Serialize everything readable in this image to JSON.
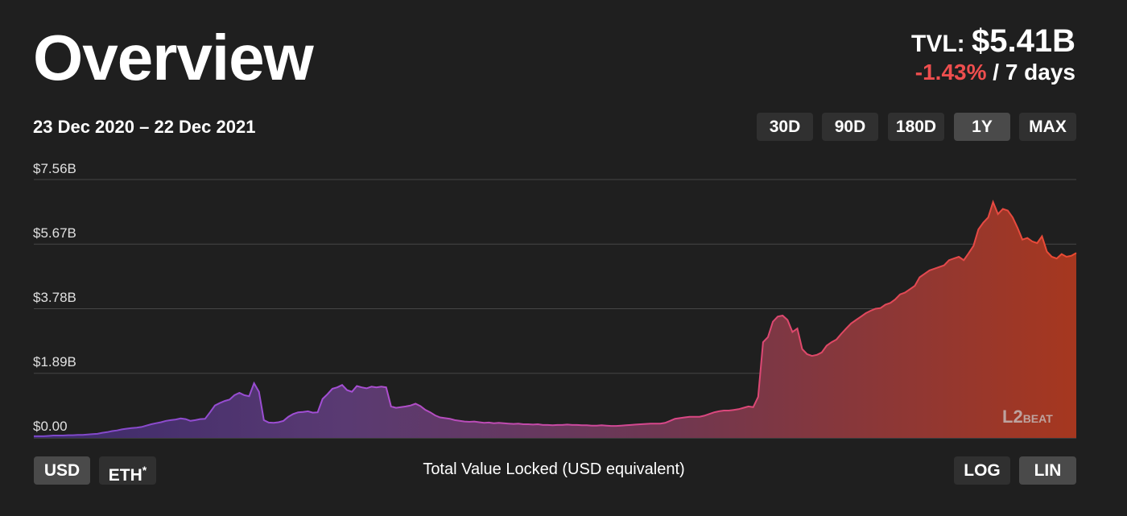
{
  "header": {
    "title": "Overview",
    "tvl_label": "TVL:",
    "tvl_value": "$5.41B",
    "change": "-1.43%",
    "change_period": "/ 7 days",
    "date_range": "23 Dec 2020 – 22 Dec 2021"
  },
  "range_buttons": [
    {
      "label": "30D",
      "active": false
    },
    {
      "label": "90D",
      "active": false
    },
    {
      "label": "180D",
      "active": false
    },
    {
      "label": "1Y",
      "active": true
    },
    {
      "label": "MAX",
      "active": false
    }
  ],
  "currency_buttons": {
    "usd": "USD",
    "eth": "ETH",
    "eth_note": "*"
  },
  "scale_buttons": {
    "log": "LOG",
    "lin": "LIN",
    "active": "LIN"
  },
  "logo": {
    "text_left": "L2",
    "text_right": "BEAT"
  },
  "colors": {
    "gradient_start": "#8b4fd8",
    "gradient_mid": "#d9477e",
    "gradient_end": "#e8452e",
    "negative": "#ee4e4e"
  },
  "chart_data": {
    "type": "area",
    "title": "",
    "xlabel": "Total Value Locked (USD equivalent)",
    "ylabel": "",
    "x_start": "2020-12-23",
    "x_end": "2021-12-22",
    "ylim": [
      0,
      7.56
    ],
    "y_ticks": [
      "$0.00",
      "$1.89B",
      "$3.78B",
      "$5.67B",
      "$7.56B"
    ],
    "grid": true,
    "unit": "USD billions",
    "series": [
      {
        "values": [
          0.05,
          0.05,
          0.05,
          0.06,
          0.07,
          0.07,
          0.07,
          0.08,
          0.08,
          0.09,
          0.09,
          0.1,
          0.11,
          0.12,
          0.15,
          0.17,
          0.2,
          0.22,
          0.25,
          0.27,
          0.29,
          0.3,
          0.32,
          0.36,
          0.4,
          0.43,
          0.46,
          0.5,
          0.52,
          0.54,
          0.57,
          0.55,
          0.5,
          0.52,
          0.55,
          0.56,
          0.75,
          0.95,
          1.02,
          1.08,
          1.12,
          1.25,
          1.32,
          1.25,
          1.22,
          1.6,
          1.35,
          0.52,
          0.45,
          0.44,
          0.46,
          0.5,
          0.62,
          0.7,
          0.75,
          0.76,
          0.78,
          0.74,
          0.75,
          1.14,
          1.28,
          1.44,
          1.48,
          1.55,
          1.4,
          1.35,
          1.52,
          1.48,
          1.45,
          1.5,
          1.48,
          1.5,
          1.48,
          0.92,
          0.88,
          0.9,
          0.92,
          0.95,
          1.0,
          0.93,
          0.82,
          0.75,
          0.66,
          0.6,
          0.58,
          0.56,
          0.52,
          0.5,
          0.48,
          0.47,
          0.48,
          0.46,
          0.44,
          0.45,
          0.43,
          0.44,
          0.43,
          0.42,
          0.41,
          0.42,
          0.4,
          0.4,
          0.39,
          0.4,
          0.38,
          0.38,
          0.37,
          0.38,
          0.38,
          0.39,
          0.38,
          0.38,
          0.37,
          0.37,
          0.36,
          0.36,
          0.37,
          0.36,
          0.35,
          0.35,
          0.36,
          0.37,
          0.38,
          0.39,
          0.4,
          0.41,
          0.42,
          0.42,
          0.42,
          0.44,
          0.5,
          0.56,
          0.58,
          0.6,
          0.62,
          0.62,
          0.62,
          0.65,
          0.7,
          0.75,
          0.78,
          0.8,
          0.8,
          0.82,
          0.84,
          0.88,
          0.92,
          0.9,
          1.2,
          2.8,
          2.95,
          3.4,
          3.55,
          3.58,
          3.45,
          3.1,
          3.2,
          2.6,
          2.45,
          2.4,
          2.43,
          2.5,
          2.7,
          2.8,
          2.88,
          3.05,
          3.2,
          3.35,
          3.45,
          3.55,
          3.65,
          3.72,
          3.78,
          3.8,
          3.9,
          3.95,
          4.05,
          4.2,
          4.25,
          4.35,
          4.45,
          4.7,
          4.8,
          4.9,
          4.95,
          5.0,
          5.05,
          5.2,
          5.25,
          5.3,
          5.2,
          5.4,
          5.62,
          6.1,
          6.3,
          6.45,
          6.9,
          6.55,
          6.7,
          6.65,
          6.45,
          6.15,
          5.8,
          5.85,
          5.75,
          5.7,
          5.9,
          5.45,
          5.3,
          5.25,
          5.38,
          5.3,
          5.33,
          5.41
        ]
      }
    ]
  }
}
